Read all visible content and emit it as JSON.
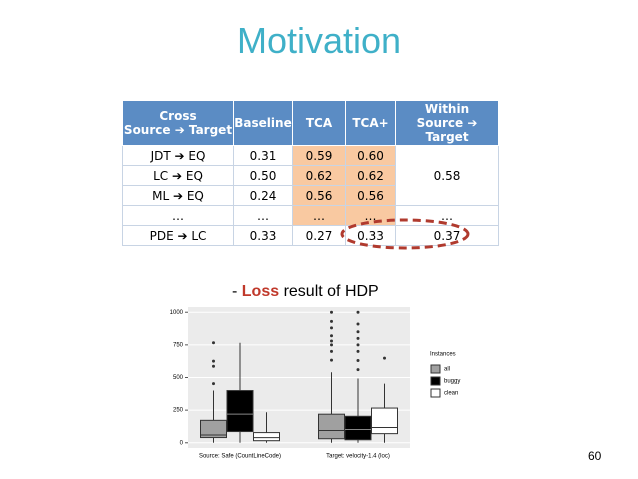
{
  "slide": {
    "title": "Motivation",
    "caption": {
      "prefix": "-",
      "highlight": "Loss",
      "rest": "result of HDP"
    },
    "page_number": "60"
  },
  "table": {
    "header": [
      [
        "Cross",
        "Source ➔ Target"
      ],
      [
        "Baseline"
      ],
      [
        "TCA"
      ],
      [
        "TCA+"
      ],
      [
        "Within",
        "Source ➔ Target"
      ]
    ],
    "rows": [
      [
        "JDT ➔ EQ",
        "0.31",
        "0.59",
        "0.60",
        "0.58"
      ],
      [
        "LC ➔ EQ",
        "0.50",
        "0.62",
        "0.62"
      ],
      [
        "ML ➔ EQ",
        "0.24",
        "0.56",
        "0.56"
      ],
      [
        "…",
        "…",
        "…",
        "…",
        "…"
      ],
      [
        "PDE ➔ LC",
        "0.33",
        "0.27",
        "0.33",
        "0.37"
      ]
    ]
  },
  "chart_data": {
    "type": "box",
    "categories": [
      "Source: Safe (CountLineCode)",
      "Target: velocity-1.4 (loc)"
    ],
    "ylim": [
      -40,
      1040
    ],
    "yticks": [
      0,
      250,
      500,
      750,
      1000
    ],
    "grid": true,
    "legend_title": "Instances",
    "legend": "right",
    "series": [
      {
        "name": "all",
        "color": "#a0a0a0",
        "values": [
          {
            "min": 0,
            "q1": 40,
            "median": 60,
            "q3": 172,
            "max": 400,
            "outliers": [
              453,
              586,
              625,
              766
            ]
          },
          {
            "min": 0,
            "q1": 31,
            "median": 94,
            "q3": 219,
            "max": 540,
            "outliers": [
              633,
              700,
              750,
              780,
              820,
              880,
              930,
              1000
            ]
          }
        ]
      },
      {
        "name": "buggy",
        "color": "#000000",
        "values": [
          {
            "min": 0,
            "q1": 86,
            "median": 219,
            "q3": 400,
            "max": 766,
            "outliers": []
          },
          {
            "min": 0,
            "q1": 23,
            "median": 102,
            "q3": 203,
            "max": 492,
            "outliers": [
              560,
              630,
              700,
              750,
              800,
              850,
              910,
              1000
            ]
          }
        ]
      },
      {
        "name": "clean",
        "color": "#ffffff",
        "values": [
          {
            "min": 0,
            "q1": 16,
            "median": 39,
            "q3": 78,
            "max": 234,
            "outliers": []
          },
          {
            "min": 0,
            "q1": 70,
            "median": 117,
            "q3": 266,
            "max": 453,
            "outliers": [
              648
            ]
          }
        ]
      }
    ]
  }
}
